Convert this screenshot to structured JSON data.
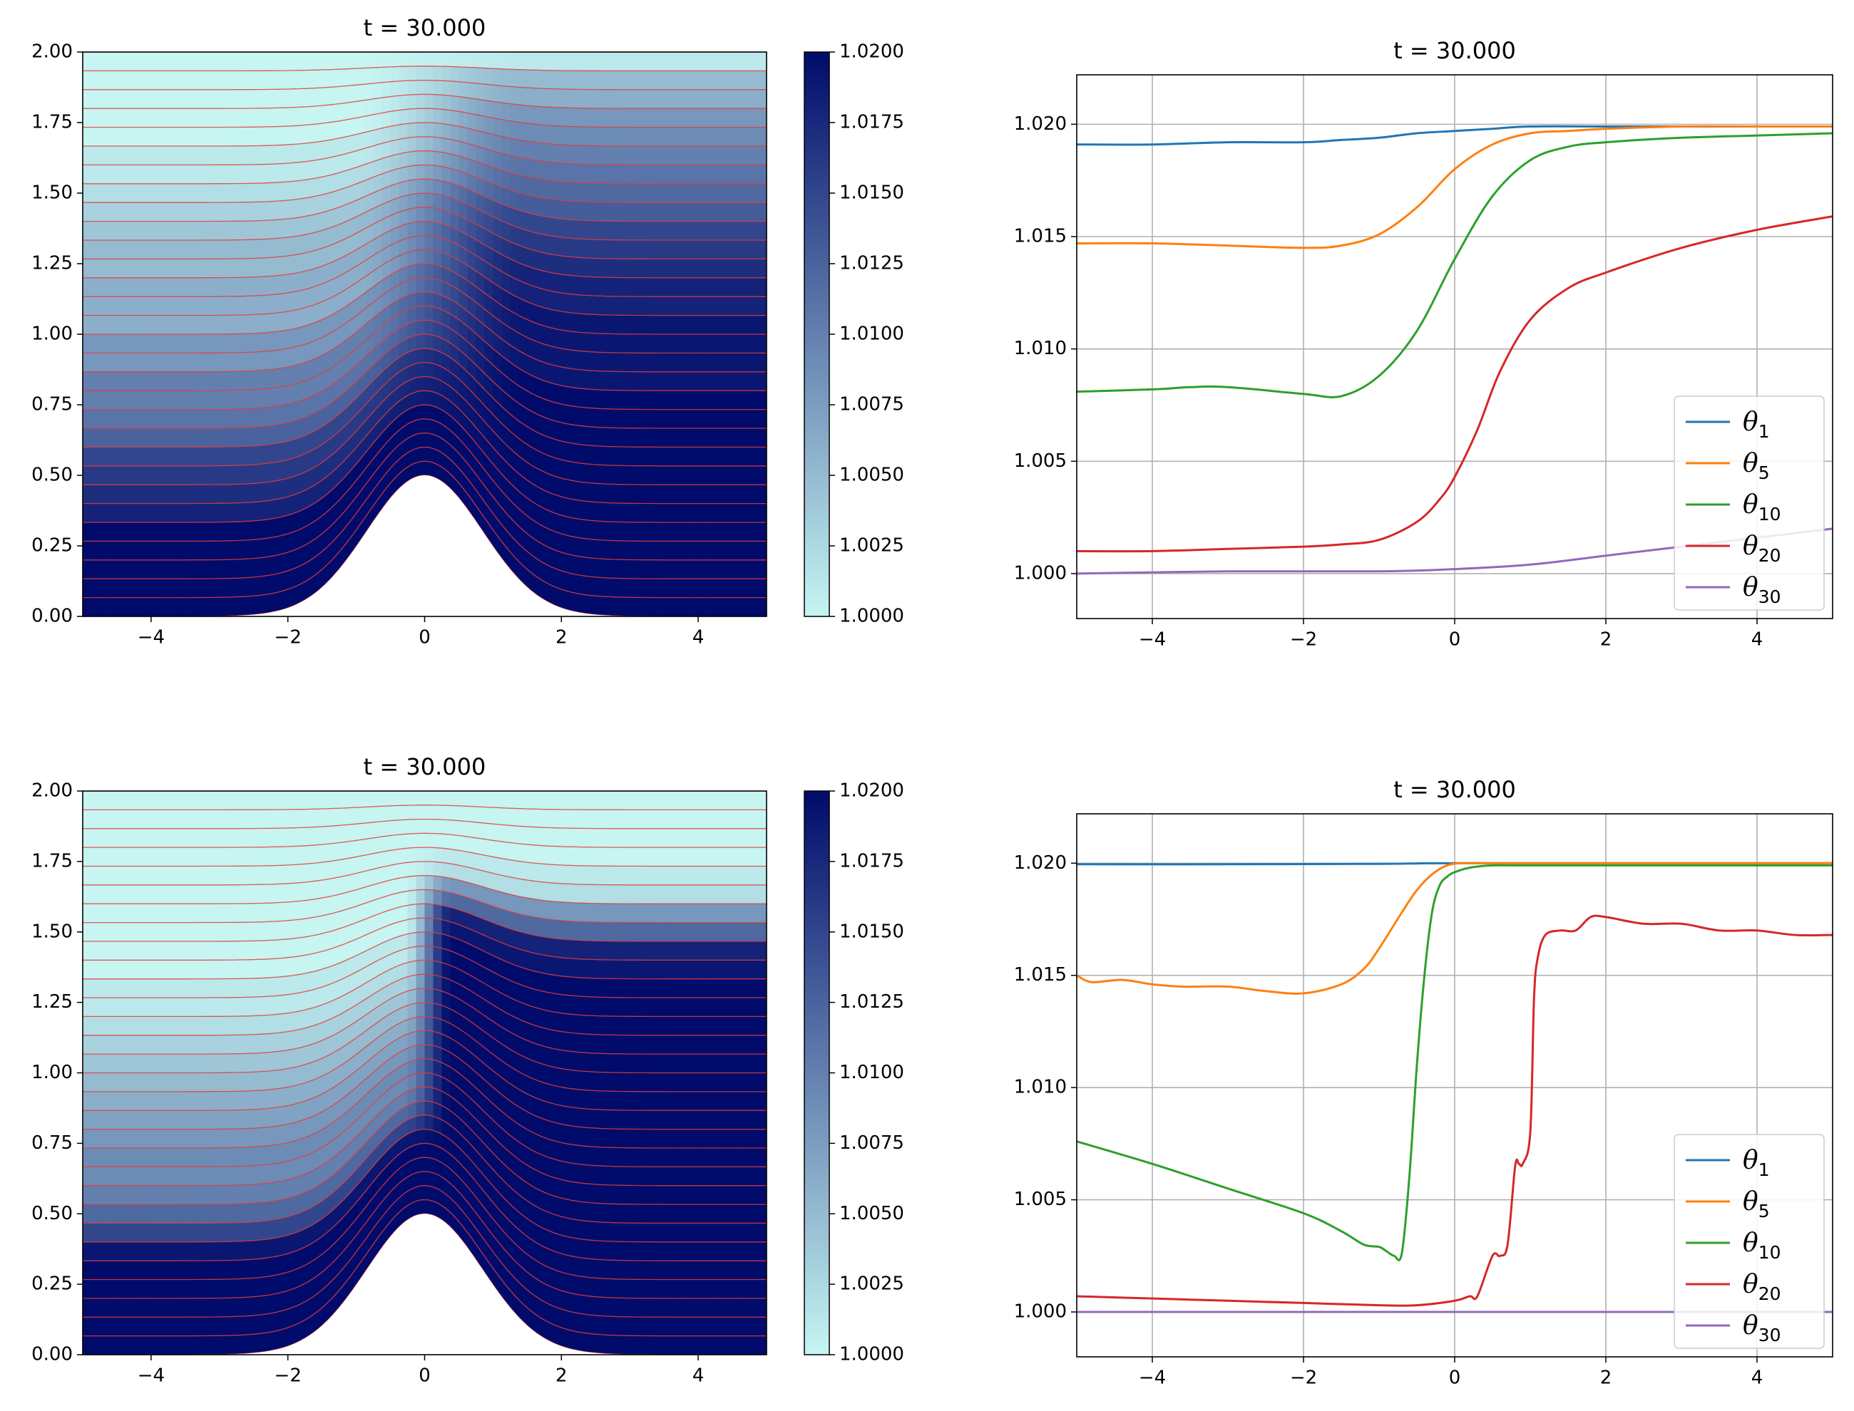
{
  "chart_data": [
    {
      "type": "heatmap",
      "title": "t = 30.000",
      "xlabel": "",
      "ylabel": "",
      "xlim": [
        -5,
        5
      ],
      "ylim": [
        0,
        2.0
      ],
      "xticks": [
        -4,
        -2,
        0,
        2,
        4
      ],
      "xtick_labels": [
        "−4",
        "−2",
        "0",
        "2",
        "4"
      ],
      "yticks": [
        0,
        0.25,
        0.5,
        0.75,
        1.0,
        1.25,
        1.5,
        1.75,
        2.0
      ],
      "ytick_labels": [
        "0.00",
        "0.25",
        "0.50",
        "0.75",
        "1.00",
        "1.25",
        "1.50",
        "1.75",
        "2.00"
      ],
      "colorbar": {
        "range": [
          1.0,
          1.02
        ],
        "ticks": [
          1.0,
          1.0025,
          1.005,
          1.0075,
          1.01,
          1.0125,
          1.015,
          1.0175,
          1.02
        ],
        "tick_labels": [
          "1.0000",
          "1.0025",
          "1.0050",
          "1.0075",
          "1.0100",
          "1.0125",
          "1.0150",
          "1.0175",
          "1.0200"
        ],
        "colors": [
          "#c6f5f2",
          "#000b6b"
        ]
      },
      "bump_height": 0.5,
      "bump_width": 1.0,
      "layers": 30,
      "layer_line_color": "#e63b3b",
      "profile_left": [
        1.02,
        1.02,
        1.02,
        1.02,
        1.02,
        1.018,
        1.017,
        1.016,
        1.015,
        1.0125,
        1.011,
        1.01,
        1.01,
        1.008,
        1.008,
        1.006,
        1.006,
        1.006,
        1.005,
        1.005,
        1.004,
        1.003,
        1.002,
        1.001,
        1.001,
        1.0,
        1.0,
        1.0,
        1.0,
        1.0
      ],
      "profile_right": [
        1.02,
        1.02,
        1.02,
        1.02,
        1.02,
        1.02,
        1.02,
        1.02,
        1.02,
        1.02,
        1.02,
        1.02,
        1.019,
        1.019,
        1.019,
        1.019,
        1.018,
        1.018,
        1.017,
        1.016,
        1.015,
        1.013,
        1.012,
        1.011,
        1.01,
        1.009,
        1.008,
        1.006,
        1.005,
        1.001
      ],
      "transition_x": [
        -1.0,
        1.5
      ]
    },
    {
      "type": "line",
      "title": "t = 30.000",
      "xlabel": "",
      "ylabel": "",
      "xlim": [
        -5,
        5
      ],
      "ylim": [
        0.998,
        1.0222
      ],
      "xticks": [
        -4,
        -2,
        0,
        2,
        4
      ],
      "xtick_labels": [
        "−4",
        "−2",
        "0",
        "2",
        "4"
      ],
      "yticks": [
        1.0,
        1.005,
        1.01,
        1.015,
        1.02
      ],
      "ytick_labels": [
        "1.000",
        "1.005",
        "1.010",
        "1.015",
        "1.020"
      ],
      "grid": true,
      "legend_position": "lower-right",
      "series": [
        {
          "name": "θ",
          "sub": "1",
          "color": "#1f77b4",
          "x": [
            -5,
            -4,
            -3,
            -2,
            -1.5,
            -1,
            -0.5,
            0,
            0.5,
            1,
            2,
            3,
            4,
            5
          ],
          "y": [
            1.0191,
            1.0191,
            1.0192,
            1.0192,
            1.0193,
            1.0194,
            1.0196,
            1.0197,
            1.0198,
            1.0199,
            1.0199,
            1.0199,
            1.0199,
            1.0199
          ]
        },
        {
          "name": "θ",
          "sub": "5",
          "color": "#ff7f0e",
          "x": [
            -5,
            -4,
            -3,
            -2,
            -1.5,
            -1,
            -0.5,
            0,
            0.5,
            1,
            1.5,
            2,
            3,
            4,
            5
          ],
          "y": [
            1.0147,
            1.0147,
            1.0146,
            1.0145,
            1.0146,
            1.0151,
            1.0163,
            1.018,
            1.0191,
            1.0196,
            1.0197,
            1.0198,
            1.0199,
            1.0199,
            1.0199
          ]
        },
        {
          "name": "θ",
          "sub": "10",
          "color": "#2ca02c",
          "x": [
            -5,
            -4,
            -3.5,
            -3,
            -2,
            -1.5,
            -1,
            -0.5,
            0,
            0.5,
            1,
            1.5,
            2,
            3,
            4,
            5
          ],
          "y": [
            1.0081,
            1.0082,
            1.0083,
            1.0083,
            1.008,
            1.0079,
            1.0088,
            1.0108,
            1.014,
            1.0168,
            1.0184,
            1.019,
            1.0192,
            1.0194,
            1.0195,
            1.0196
          ]
        },
        {
          "name": "θ",
          "sub": "20",
          "color": "#d62728",
          "x": [
            -5,
            -4,
            -3,
            -2,
            -1.5,
            -1,
            -0.5,
            -0.2,
            0,
            0.3,
            0.6,
            1,
            1.5,
            2,
            3,
            4,
            5
          ],
          "y": [
            1.001,
            1.001,
            1.0011,
            1.0012,
            1.0013,
            1.0015,
            1.0023,
            1.0033,
            1.0043,
            1.0064,
            1.009,
            1.0113,
            1.0127,
            1.0134,
            1.0145,
            1.0153,
            1.0159
          ]
        },
        {
          "name": "θ",
          "sub": "30",
          "color": "#9467bd",
          "x": [
            -5,
            -3,
            -1,
            0,
            1,
            2,
            3,
            4,
            5
          ],
          "y": [
            1.0,
            1.0001,
            1.0001,
            1.0002,
            1.0004,
            1.0008,
            1.0012,
            1.0016,
            1.002
          ]
        }
      ]
    },
    {
      "type": "heatmap",
      "title": "t = 30.000",
      "xlabel": "",
      "ylabel": "",
      "xlim": [
        -5,
        5
      ],
      "ylim": [
        0,
        2.0
      ],
      "xticks": [
        -4,
        -2,
        0,
        2,
        4
      ],
      "xtick_labels": [
        "−4",
        "−2",
        "0",
        "2",
        "4"
      ],
      "yticks": [
        0,
        0.25,
        0.5,
        0.75,
        1.0,
        1.25,
        1.5,
        1.75,
        2.0
      ],
      "ytick_labels": [
        "0.00",
        "0.25",
        "0.50",
        "0.75",
        "1.00",
        "1.25",
        "1.50",
        "1.75",
        "2.00"
      ],
      "colorbar": {
        "range": [
          1.0,
          1.02
        ],
        "ticks": [
          1.0,
          1.0025,
          1.005,
          1.0075,
          1.01,
          1.0125,
          1.015,
          1.0175,
          1.02
        ],
        "tick_labels": [
          "1.0000",
          "1.0025",
          "1.0050",
          "1.0075",
          "1.0100",
          "1.0125",
          "1.0150",
          "1.0175",
          "1.0200"
        ],
        "colors": [
          "#c6f5f2",
          "#000b6b"
        ]
      },
      "bump_height": 0.5,
      "bump_width": 1.0,
      "layers": 30,
      "layer_line_color": "#e63b3b",
      "profile_left": [
        1.02,
        1.02,
        1.02,
        1.02,
        1.02,
        1.019,
        1.015,
        1.012,
        1.01,
        1.009,
        1.009,
        1.008,
        1.007,
        1.006,
        1.005,
        1.004,
        1.003,
        1.002,
        1.001,
        1.001,
        1.0,
        1.0,
        1.0,
        1.0,
        1.0,
        1.0,
        1.0,
        1.0,
        1.0,
        1.0
      ],
      "profile_right": [
        1.02,
        1.02,
        1.02,
        1.02,
        1.02,
        1.02,
        1.02,
        1.02,
        1.02,
        1.02,
        1.02,
        1.02,
        1.02,
        1.02,
        1.02,
        1.02,
        1.02,
        1.02,
        1.02,
        1.02,
        1.019,
        1.018,
        1.012,
        1.008,
        1.002,
        1.001,
        1.0,
        1.0,
        1.0,
        1.0
      ],
      "transition_x": [
        -0.3,
        0.4
      ]
    },
    {
      "type": "line",
      "title": "t = 30.000",
      "xlabel": "",
      "ylabel": "",
      "xlim": [
        -5,
        5
      ],
      "ylim": [
        0.998,
        1.0222
      ],
      "xticks": [
        -4,
        -2,
        0,
        2,
        4
      ],
      "xtick_labels": [
        "−4",
        "−2",
        "0",
        "2",
        "4"
      ],
      "yticks": [
        1.0,
        1.005,
        1.01,
        1.015,
        1.02
      ],
      "ytick_labels": [
        "1.000",
        "1.005",
        "1.010",
        "1.015",
        "1.020"
      ],
      "grid": true,
      "legend_position": "lower-right",
      "series": [
        {
          "name": "θ",
          "sub": "1",
          "color": "#1f77b4",
          "x": [
            -5,
            -3,
            -1,
            -0.5,
            0,
            1,
            3,
            5
          ],
          "y": [
            1.01995,
            1.01995,
            1.01997,
            1.01999,
            1.02,
            1.02,
            1.02,
            1.02
          ]
        },
        {
          "name": "θ",
          "sub": "5",
          "color": "#ff7f0e",
          "x": [
            -5,
            -4.8,
            -4.4,
            -4.0,
            -3.6,
            -3.0,
            -2.5,
            -2.0,
            -1.5,
            -1.2,
            -1.0,
            -0.7,
            -0.5,
            -0.3,
            -0.1,
            0.1,
            0.5,
            1,
            3,
            5
          ],
          "y": [
            1.015,
            1.0147,
            1.0148,
            1.0146,
            1.0145,
            1.0145,
            1.0143,
            1.0142,
            1.0146,
            1.0153,
            1.0162,
            1.0178,
            1.0188,
            1.0195,
            1.0199,
            1.02,
            1.02,
            1.02,
            1.02,
            1.02
          ]
        },
        {
          "name": "θ",
          "sub": "10",
          "color": "#2ca02c",
          "x": [
            -5,
            -4,
            -3,
            -2,
            -1.5,
            -1.2,
            -1.0,
            -0.9,
            -0.8,
            -0.7,
            -0.6,
            -0.5,
            -0.4,
            -0.3,
            -0.2,
            -0.1,
            0,
            0.2,
            0.5,
            1,
            3,
            5
          ],
          "y": [
            1.0076,
            1.0066,
            1.0055,
            1.0044,
            1.0036,
            1.003,
            1.0029,
            1.0027,
            1.0025,
            1.0026,
            1.006,
            1.011,
            1.015,
            1.0178,
            1.019,
            1.0194,
            1.0196,
            1.0198,
            1.0199,
            1.0199,
            1.0199,
            1.0199
          ]
        },
        {
          "name": "θ",
          "sub": "20",
          "color": "#d62728",
          "x": [
            -5,
            -4,
            -3,
            -2,
            -1,
            -0.5,
            0,
            0.2,
            0.3,
            0.5,
            0.6,
            0.7,
            0.8,
            0.85,
            0.9,
            1.0,
            1.05,
            1.1,
            1.2,
            1.4,
            1.6,
            1.8,
            2.0,
            2.5,
            3,
            3.5,
            4,
            4.5,
            5
          ],
          "y": [
            1.0007,
            1.0006,
            1.0005,
            1.0004,
            1.0003,
            1.0003,
            1.0005,
            1.0007,
            1.0007,
            1.0025,
            1.0025,
            1.003,
            1.0065,
            1.0066,
            1.0066,
            1.008,
            1.014,
            1.0158,
            1.0168,
            1.017,
            1.017,
            1.0176,
            1.0176,
            1.0173,
            1.0173,
            1.017,
            1.017,
            1.0168,
            1.0168
          ]
        },
        {
          "name": "θ",
          "sub": "30",
          "color": "#9467bd",
          "x": [
            -5,
            0,
            5
          ],
          "y": [
            1.0,
            1.0,
            1.0
          ]
        }
      ]
    }
  ]
}
